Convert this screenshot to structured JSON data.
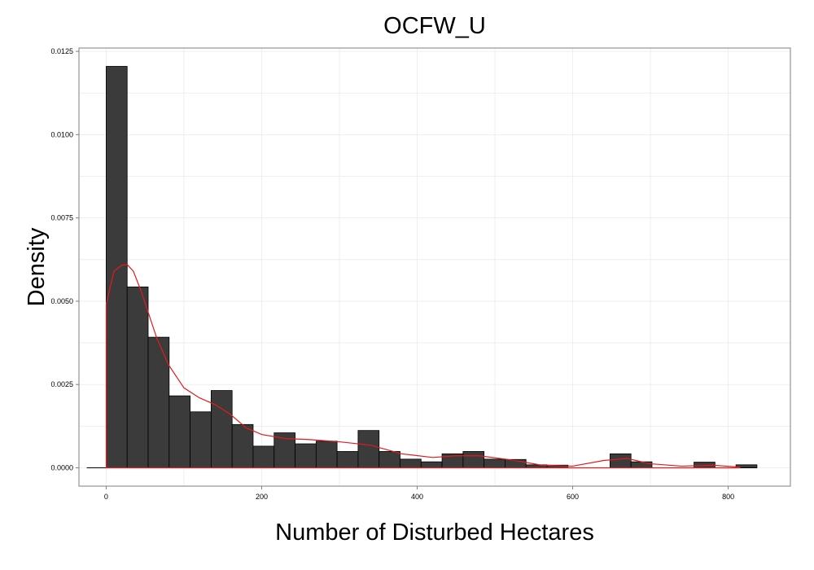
{
  "chart_data": {
    "type": "bar",
    "title": "OCFW_U",
    "xlabel": "Number of Disturbed Hectares",
    "ylabel": "Density",
    "xlim": [
      -35,
      880
    ],
    "ylim": [
      -0.00055,
      0.0126
    ],
    "grid": true,
    "xticks": [
      0,
      200,
      400,
      600,
      800
    ],
    "xtick_labels": [
      "0",
      "200",
      "400",
      "600",
      "800"
    ],
    "yticks": [
      0,
      0.0025,
      0.005,
      0.0075,
      0.01,
      0.0125
    ],
    "ytick_labels": [
      "0.0000",
      "0.0025",
      "0.0050",
      "0.0075",
      "0.0100",
      "0.0125"
    ],
    "bin_width": 27,
    "bins_left_edges": [
      0,
      27,
      54,
      81,
      108,
      135,
      162,
      189,
      216,
      243,
      270,
      297,
      324,
      351,
      378,
      405,
      432,
      459,
      486,
      513,
      540,
      567,
      594,
      621,
      648,
      675,
      702,
      729,
      756,
      783,
      810
    ],
    "values": [
      0.01205,
      0.00543,
      0.00392,
      0.00216,
      0.00168,
      0.00232,
      0.0013,
      0.00065,
      0.00105,
      0.00072,
      0.0008,
      0.00049,
      0.00112,
      0.00049,
      0.00026,
      0.00018,
      0.00042,
      0.00049,
      0.00026,
      0.00025,
      9e-05,
      8e-05,
      0.0,
      0.0,
      0.00042,
      0.00018,
      0.0,
      0.0,
      0.00017,
      0.0,
      9e-05
    ],
    "density_curve": {
      "color": "#e41a1c",
      "x": [
        0,
        10,
        20,
        27,
        35,
        45,
        55,
        65,
        80,
        100,
        120,
        140,
        160,
        180,
        200,
        230,
        260,
        300,
        340,
        380,
        420,
        450,
        480,
        520,
        560,
        600,
        640,
        670,
        700,
        740,
        780,
        815
      ],
      "y": [
        0.0049,
        0.0059,
        0.00608,
        0.0061,
        0.0059,
        0.0053,
        0.0046,
        0.0039,
        0.0031,
        0.0024,
        0.0021,
        0.0019,
        0.0016,
        0.0012,
        0.001,
        0.00088,
        0.00085,
        0.00078,
        0.00068,
        0.00042,
        0.00031,
        0.00036,
        0.00036,
        0.00024,
        8e-05,
        5e-05,
        0.00022,
        0.00028,
        0.00012,
        5e-05,
        8e-05,
        2e-05
      ]
    },
    "colors": {
      "bar_fill": "#3b3b3b",
      "bar_stroke": "#000000",
      "grid": "#ebebeb",
      "panel_border": "#7f7f7f"
    }
  }
}
